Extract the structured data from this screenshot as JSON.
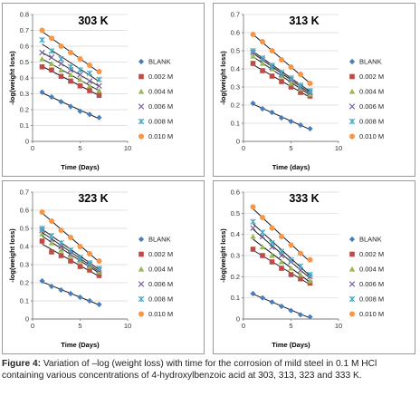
{
  "chart_data": [
    {
      "type": "scatter",
      "title": "303 K",
      "xlabel": "Time (Days)",
      "ylabel": "-log(weight loss)",
      "xlim": [
        0,
        10
      ],
      "ylim": [
        0,
        0.8
      ],
      "xticks": [
        "0",
        "5",
        "10"
      ],
      "yticks": [
        "0",
        "0.1",
        "0.2",
        "0.3",
        "0.4",
        "0.5",
        "0.6",
        "0.7",
        "0.8"
      ],
      "x": [
        1,
        2,
        3,
        4,
        5,
        6,
        7
      ],
      "series": [
        {
          "name": "BLANK",
          "values": [
            0.31,
            0.28,
            0.25,
            0.22,
            0.19,
            0.17,
            0.15
          ]
        },
        {
          "name": "0.002 M",
          "values": [
            0.47,
            0.45,
            0.41,
            0.38,
            0.35,
            0.32,
            0.29
          ]
        },
        {
          "name": "0.004 M",
          "values": [
            0.52,
            0.49,
            0.45,
            0.42,
            0.39,
            0.35,
            0.32
          ]
        },
        {
          "name": "0.006 M",
          "values": [
            0.56,
            0.53,
            0.49,
            0.45,
            0.42,
            0.38,
            0.35
          ]
        },
        {
          "name": "0.008 M",
          "values": [
            0.64,
            0.57,
            0.52,
            0.47,
            0.45,
            0.43,
            0.39
          ]
        },
        {
          "name": "0.010 M",
          "values": [
            0.7,
            0.65,
            0.6,
            0.56,
            0.52,
            0.48,
            0.44
          ]
        }
      ],
      "legend": "right"
    },
    {
      "type": "scatter",
      "title": "313 K",
      "xlabel": "Time (days)",
      "ylabel": "-log(weight loss)",
      "xlim": [
        0,
        10
      ],
      "ylim": [
        0,
        0.7
      ],
      "xticks": [
        "0",
        "5",
        "10"
      ],
      "yticks": [
        "0",
        "0.1",
        "0.2",
        "0.3",
        "0.4",
        "0.5",
        "0.6",
        "0.7"
      ],
      "x": [
        1,
        2,
        3,
        4,
        5,
        6,
        7
      ],
      "series": [
        {
          "name": "BLANK",
          "values": [
            0.21,
            0.18,
            0.16,
            0.13,
            0.11,
            0.09,
            0.07
          ]
        },
        {
          "name": "0.002 M",
          "values": [
            0.43,
            0.39,
            0.36,
            0.33,
            0.3,
            0.27,
            0.25
          ]
        },
        {
          "name": "0.004 M",
          "values": [
            0.47,
            0.43,
            0.4,
            0.36,
            0.32,
            0.29,
            0.26
          ]
        },
        {
          "name": "0.006 M",
          "values": [
            0.49,
            0.45,
            0.41,
            0.37,
            0.34,
            0.3,
            0.27
          ]
        },
        {
          "name": "0.008 M",
          "values": [
            0.5,
            0.46,
            0.42,
            0.38,
            0.35,
            0.31,
            0.28
          ]
        },
        {
          "name": "0.010 M",
          "values": [
            0.59,
            0.55,
            0.5,
            0.45,
            0.41,
            0.37,
            0.32
          ]
        }
      ],
      "legend": "right"
    },
    {
      "type": "scatter",
      "title": "323 K",
      "xlabel": "Time (Days)",
      "ylabel": "-log(weight loss)",
      "xlim": [
        0,
        10
      ],
      "ylim": [
        0,
        0.7
      ],
      "xticks": [
        "0",
        "5",
        "10"
      ],
      "yticks": [
        "0",
        "0.1",
        "0.2",
        "0.3",
        "0.4",
        "0.5",
        "0.6",
        "0.7"
      ],
      "x": [
        1,
        2,
        3,
        4,
        5,
        6,
        7
      ],
      "series": [
        {
          "name": "BLANK",
          "values": [
            0.21,
            0.18,
            0.16,
            0.14,
            0.12,
            0.1,
            0.08
          ]
        },
        {
          "name": "0.002 M",
          "values": [
            0.43,
            0.37,
            0.35,
            0.32,
            0.29,
            0.27,
            0.24
          ]
        },
        {
          "name": "0.004 M",
          "values": [
            0.47,
            0.42,
            0.38,
            0.35,
            0.32,
            0.29,
            0.26
          ]
        },
        {
          "name": "0.006 M",
          "values": [
            0.49,
            0.44,
            0.4,
            0.36,
            0.33,
            0.3,
            0.27
          ]
        },
        {
          "name": "0.008 M",
          "values": [
            0.5,
            0.46,
            0.42,
            0.38,
            0.34,
            0.31,
            0.28
          ]
        },
        {
          "name": "0.010 M",
          "values": [
            0.59,
            0.54,
            0.49,
            0.45,
            0.4,
            0.36,
            0.32
          ]
        }
      ],
      "legend": "right"
    },
    {
      "type": "scatter",
      "title": "333 K",
      "xlabel": "Time (Days)",
      "ylabel": "-log(weight loss)",
      "xlim": [
        0,
        10
      ],
      "ylim": [
        0,
        0.6
      ],
      "xticks": [
        "0",
        "5",
        "10"
      ],
      "yticks": [
        "0",
        "0.1",
        "0.2",
        "0.3",
        "0.4",
        "0.5",
        "0.6"
      ],
      "x": [
        1,
        2,
        3,
        4,
        5,
        6,
        7
      ],
      "series": [
        {
          "name": "BLANK",
          "values": [
            0.12,
            0.1,
            0.08,
            0.06,
            0.04,
            0.02,
            0.01
          ]
        },
        {
          "name": "0.002 M",
          "values": [
            0.33,
            0.3,
            0.27,
            0.24,
            0.21,
            0.19,
            0.17
          ]
        },
        {
          "name": "0.004 M",
          "values": [
            0.39,
            0.34,
            0.3,
            0.27,
            0.24,
            0.21,
            0.18
          ]
        },
        {
          "name": "0.006 M",
          "values": [
            0.43,
            0.39,
            0.34,
            0.3,
            0.27,
            0.23,
            0.2
          ]
        },
        {
          "name": "0.008 M",
          "values": [
            0.46,
            0.41,
            0.36,
            0.32,
            0.28,
            0.25,
            0.21
          ]
        },
        {
          "name": "0.010 M",
          "values": [
            0.53,
            0.48,
            0.43,
            0.39,
            0.35,
            0.31,
            0.28
          ]
        }
      ],
      "legend": "right"
    }
  ],
  "series_style": [
    {
      "marker": "diamond",
      "color": "#4a7ebb"
    },
    {
      "marker": "square",
      "color": "#be4b48"
    },
    {
      "marker": "triangle",
      "color": "#98b954"
    },
    {
      "marker": "x",
      "color": "#7d60a0"
    },
    {
      "marker": "asterisk",
      "color": "#46aac5"
    },
    {
      "marker": "circle",
      "color": "#f79646"
    }
  ],
  "trendline_color": "#1a1a1a",
  "caption": {
    "label": "Figure 4:",
    "text": " Variation of –log (weight loss) with time for the corrosion of mild steel in 0.1 M HCl containing various concentrations of 4-hydroxylbenzoic acid at 303, 313, 323 and 333 K."
  }
}
